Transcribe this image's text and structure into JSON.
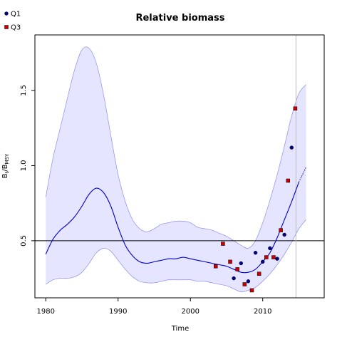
{
  "chart_data": {
    "type": "line",
    "title": "Relative biomass",
    "xlabel": "Time",
    "ylabel_main": "B",
    "ylabel_sub1": "t",
    "ylabel_mid": "/B",
    "ylabel_sub2": "MSY",
    "xlim": [
      1978.5,
      2018.5
    ],
    "ylim": [
      0.12,
      1.87
    ],
    "x_ticks": [
      1980,
      1990,
      2000,
      2010
    ],
    "x_tick_labels": [
      "1980",
      "1990",
      "2000",
      "2010"
    ],
    "y_ticks": [
      0.5,
      1.0,
      1.5
    ],
    "y_tick_labels": [
      "0.5",
      "1.0",
      "1.5"
    ],
    "reference_line_y": 0.5,
    "vertical_line_x": 2014.6,
    "grid": false,
    "legend_placement": "top-left",
    "colors": {
      "estimate_line": "#0000cc",
      "band_fill": "#e5e5ff",
      "band_stroke": "#9999ee",
      "q1_point": "#00008b",
      "q3_point": "#cc0000",
      "reference_line": "#000000",
      "vertical_line": "#bbbbbb"
    },
    "legend": [
      {
        "label": "Q1",
        "color": "#00008b"
      },
      {
        "label": "Q3",
        "color": "#cc0000"
      }
    ],
    "estimate": {
      "x": [
        1980,
        1981,
        1982,
        1983,
        1984,
        1985,
        1986,
        1987,
        1988,
        1989,
        1990,
        1991,
        1992,
        1993,
        1994,
        1995,
        1996,
        1997,
        1998,
        1999,
        2000,
        2001,
        2002,
        2003,
        2004,
        2005,
        2006,
        2007,
        2008,
        2009,
        2010,
        2011,
        2012,
        2013,
        2014,
        2015
      ],
      "y": [
        0.41,
        0.51,
        0.57,
        0.61,
        0.66,
        0.73,
        0.81,
        0.85,
        0.82,
        0.73,
        0.59,
        0.47,
        0.4,
        0.36,
        0.35,
        0.36,
        0.37,
        0.38,
        0.38,
        0.39,
        0.38,
        0.37,
        0.36,
        0.35,
        0.34,
        0.33,
        0.31,
        0.29,
        0.29,
        0.31,
        0.36,
        0.42,
        0.52,
        0.64,
        0.76,
        0.89
      ]
    },
    "projection": {
      "x": [
        2015,
        2016
      ],
      "y": [
        0.89,
        0.99
      ]
    },
    "upper_band": {
      "x": [
        1980,
        1981,
        1982,
        1983,
        1984,
        1985,
        1986,
        1987,
        1988,
        1989,
        1990,
        1991,
        1992,
        1993,
        1994,
        1995,
        1996,
        1997,
        1998,
        1999,
        2000,
        2001,
        2002,
        2003,
        2004,
        2005,
        2006,
        2007,
        2008,
        2009,
        2010,
        2011,
        2012,
        2013,
        2014,
        2015,
        2016
      ],
      "y": [
        0.79,
        1.05,
        1.25,
        1.45,
        1.64,
        1.77,
        1.78,
        1.68,
        1.47,
        1.2,
        0.94,
        0.76,
        0.64,
        0.58,
        0.56,
        0.58,
        0.61,
        0.62,
        0.63,
        0.63,
        0.62,
        0.59,
        0.58,
        0.57,
        0.55,
        0.53,
        0.5,
        0.47,
        0.45,
        0.5,
        0.62,
        0.77,
        0.94,
        1.13,
        1.33,
        1.48,
        1.54
      ]
    },
    "lower_band": {
      "x": [
        1980,
        1981,
        1982,
        1983,
        1984,
        1985,
        1986,
        1987,
        1988,
        1989,
        1990,
        1991,
        1992,
        1993,
        1994,
        1995,
        1996,
        1997,
        1998,
        1999,
        2000,
        2001,
        2002,
        2003,
        2004,
        2005,
        2006,
        2007,
        2008,
        2009,
        2010,
        2011,
        2012,
        2013,
        2014,
        2015,
        2016
      ],
      "y": [
        0.21,
        0.24,
        0.25,
        0.25,
        0.26,
        0.29,
        0.35,
        0.42,
        0.45,
        0.43,
        0.37,
        0.31,
        0.26,
        0.23,
        0.22,
        0.22,
        0.23,
        0.24,
        0.24,
        0.24,
        0.24,
        0.23,
        0.23,
        0.22,
        0.21,
        0.2,
        0.18,
        0.16,
        0.17,
        0.19,
        0.23,
        0.28,
        0.34,
        0.41,
        0.49,
        0.58,
        0.64
      ]
    },
    "series": [
      {
        "name": "Q1",
        "x": [
          2006.0,
          2007.0,
          2008.0,
          2009.0,
          2010.0,
          2011.0,
          2012.0,
          2013.0,
          2014.0
        ],
        "y": [
          0.25,
          0.35,
          0.23,
          0.42,
          0.36,
          0.45,
          0.38,
          0.54,
          1.12
        ]
      },
      {
        "name": "Q3",
        "x": [
          2003.5,
          2004.5,
          2005.5,
          2006.5,
          2007.5,
          2008.5,
          2009.5,
          2010.5,
          2011.5,
          2012.5,
          2013.5,
          2014.5
        ],
        "y": [
          0.33,
          0.48,
          0.36,
          0.31,
          0.21,
          0.17,
          0.28,
          0.39,
          0.39,
          0.57,
          0.9,
          1.38
        ]
      }
    ]
  }
}
